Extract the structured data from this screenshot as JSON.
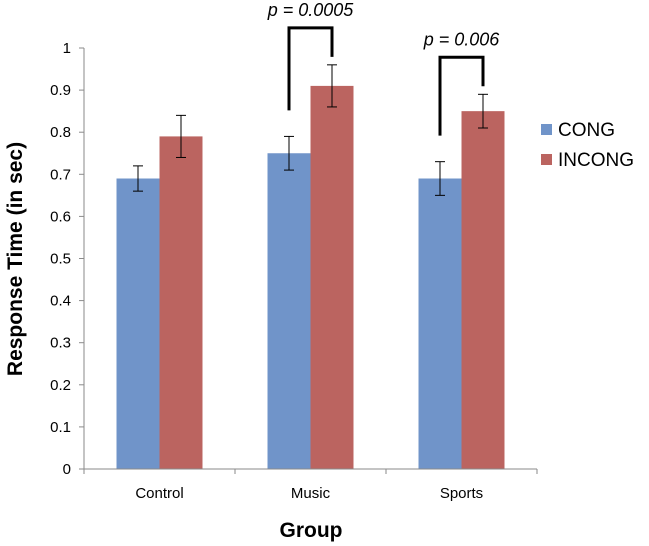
{
  "chart_data": {
    "type": "bar",
    "title": "",
    "xlabel": "Group",
    "ylabel": "Response Time (in sec)",
    "ylim": [
      0,
      1
    ],
    "yticks": [
      "0",
      "0.1",
      "0.2",
      "0.3",
      "0.4",
      "0.5",
      "0.6",
      "0.7",
      "0.8",
      "0.9",
      "1"
    ],
    "categories": [
      "Control",
      "Music",
      "Sports"
    ],
    "series": [
      {
        "name": "CONG",
        "color": "#7094C9",
        "values": [
          0.69,
          0.75,
          0.69
        ],
        "errors": [
          0.03,
          0.04,
          0.04
        ]
      },
      {
        "name": "INCONG",
        "color": "#BB6460",
        "values": [
          0.79,
          0.91,
          0.85
        ],
        "errors": [
          0.05,
          0.05,
          0.04
        ]
      }
    ],
    "legend_position": "right",
    "annotations": [
      {
        "category": "Music",
        "text": "p = 0.0005"
      },
      {
        "category": "Sports",
        "text": "p = 0.006"
      }
    ]
  }
}
